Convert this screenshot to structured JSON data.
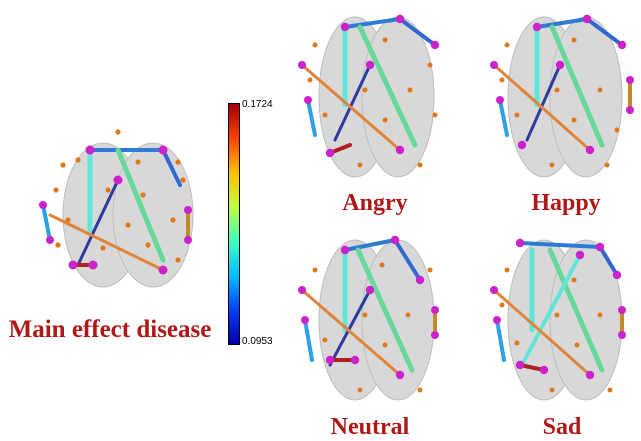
{
  "colorbar": {
    "max_label": "0.1724",
    "min_label": "0.0953",
    "colors": [
      "#0000a8",
      "#0040ff",
      "#00c0ff",
      "#40ffc0",
      "#c0ff40",
      "#ffc000",
      "#ff4000",
      "#a00000"
    ]
  },
  "captions": {
    "main": "Main effect disease",
    "angry": "Angry",
    "happy": "Happy",
    "neutral": "Neutral",
    "sad": "Sad"
  },
  "colors": {
    "caption": "#b01818",
    "node_small": "#e07818",
    "node_large": "#cc22cc",
    "brain": "#d6d6d6"
  }
}
